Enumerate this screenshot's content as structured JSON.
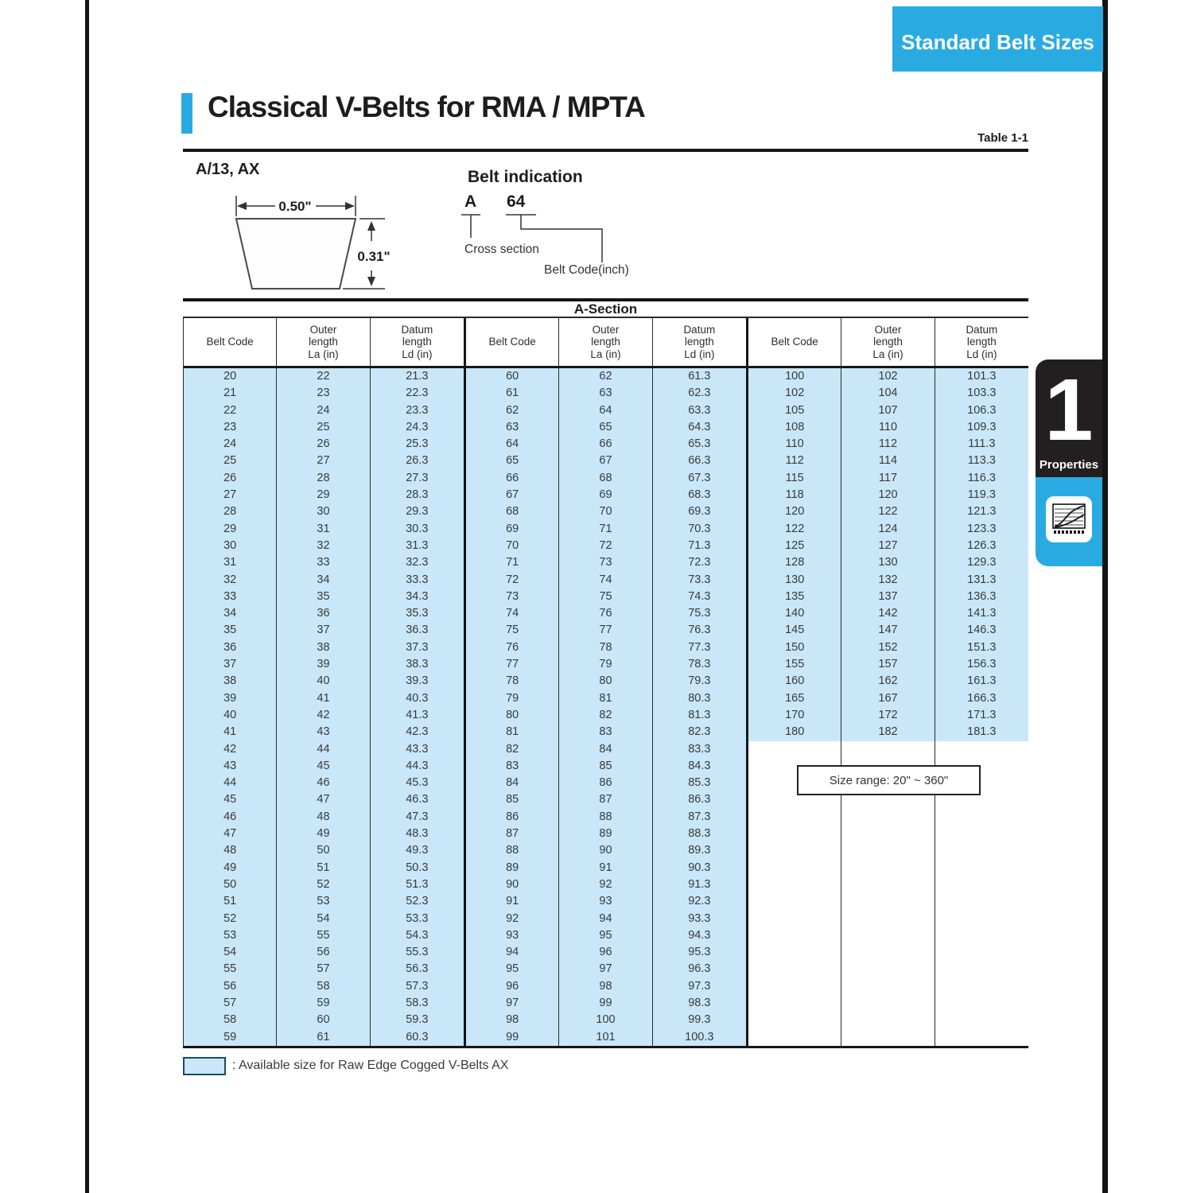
{
  "page": {
    "corner_tab": "Standard Belt Sizes",
    "title": "Classical V-Belts for RMA / MPTA",
    "table_ref": "Table 1-1",
    "section_label": "A/13, AX",
    "diagram": {
      "width_label": "0.50\"",
      "height_label": "0.31\""
    },
    "belt_indication": {
      "heading": "Belt indication",
      "cross_section_value": "A",
      "belt_code_value": "64",
      "cross_section_label": "Cross section",
      "belt_code_label": "Belt Code(inch)"
    },
    "size_range": "Size range: 20\" ~ 360\"",
    "legend_text": ": Available size for Raw Edge Cogged V-Belts AX",
    "side_tab": {
      "number": "1",
      "label": "Properties"
    },
    "colors": {
      "accent_cyan": "#29abe2",
      "highlight_blue": "#c9e7f8",
      "tab_black": "#231f20"
    }
  },
  "table": {
    "section_title": "A-Section",
    "header_columns": [
      {
        "lines": [
          "Belt Code"
        ]
      },
      {
        "lines": [
          "Outer",
          "length",
          "La (in)"
        ]
      },
      {
        "lines": [
          "Datum",
          "length",
          "Ld (in)"
        ]
      }
    ],
    "groups": [
      {
        "rows": [
          [
            "20",
            "22",
            "21.3"
          ],
          [
            "21",
            "23",
            "22.3"
          ],
          [
            "22",
            "24",
            "23.3"
          ],
          [
            "23",
            "25",
            "24.3"
          ],
          [
            "24",
            "26",
            "25.3"
          ],
          [
            "25",
            "27",
            "26.3"
          ],
          [
            "26",
            "28",
            "27.3"
          ],
          [
            "27",
            "29",
            "28.3"
          ],
          [
            "28",
            "30",
            "29.3"
          ],
          [
            "29",
            "31",
            "30.3"
          ],
          [
            "30",
            "32",
            "31.3"
          ],
          [
            "31",
            "33",
            "32.3"
          ],
          [
            "32",
            "34",
            "33.3"
          ],
          [
            "33",
            "35",
            "34.3"
          ],
          [
            "34",
            "36",
            "35.3"
          ],
          [
            "35",
            "37",
            "36.3"
          ],
          [
            "36",
            "38",
            "37.3"
          ],
          [
            "37",
            "39",
            "38.3"
          ],
          [
            "38",
            "40",
            "39.3"
          ],
          [
            "39",
            "41",
            "40.3"
          ],
          [
            "40",
            "42",
            "41.3"
          ],
          [
            "41",
            "43",
            "42.3"
          ],
          [
            "42",
            "44",
            "43.3"
          ],
          [
            "43",
            "45",
            "44.3"
          ],
          [
            "44",
            "46",
            "45.3"
          ],
          [
            "45",
            "47",
            "46.3"
          ],
          [
            "46",
            "48",
            "47.3"
          ],
          [
            "47",
            "49",
            "48.3"
          ],
          [
            "48",
            "50",
            "49.3"
          ],
          [
            "49",
            "51",
            "50.3"
          ],
          [
            "50",
            "52",
            "51.3"
          ],
          [
            "51",
            "53",
            "52.3"
          ],
          [
            "52",
            "54",
            "53.3"
          ],
          [
            "53",
            "55",
            "54.3"
          ],
          [
            "54",
            "56",
            "55.3"
          ],
          [
            "55",
            "57",
            "56.3"
          ],
          [
            "56",
            "58",
            "57.3"
          ],
          [
            "57",
            "59",
            "58.3"
          ],
          [
            "58",
            "60",
            "59.3"
          ],
          [
            "59",
            "61",
            "60.3"
          ]
        ]
      },
      {
        "rows": [
          [
            "60",
            "62",
            "61.3"
          ],
          [
            "61",
            "63",
            "62.3"
          ],
          [
            "62",
            "64",
            "63.3"
          ],
          [
            "63",
            "65",
            "64.3"
          ],
          [
            "64",
            "66",
            "65.3"
          ],
          [
            "65",
            "67",
            "66.3"
          ],
          [
            "66",
            "68",
            "67.3"
          ],
          [
            "67",
            "69",
            "68.3"
          ],
          [
            "68",
            "70",
            "69.3"
          ],
          [
            "69",
            "71",
            "70.3"
          ],
          [
            "70",
            "72",
            "71.3"
          ],
          [
            "71",
            "73",
            "72.3"
          ],
          [
            "72",
            "74",
            "73.3"
          ],
          [
            "73",
            "75",
            "74.3"
          ],
          [
            "74",
            "76",
            "75.3"
          ],
          [
            "75",
            "77",
            "76.3"
          ],
          [
            "76",
            "78",
            "77.3"
          ],
          [
            "77",
            "79",
            "78.3"
          ],
          [
            "78",
            "80",
            "79.3"
          ],
          [
            "79",
            "81",
            "80.3"
          ],
          [
            "80",
            "82",
            "81.3"
          ],
          [
            "81",
            "83",
            "82.3"
          ],
          [
            "82",
            "84",
            "83.3"
          ],
          [
            "83",
            "85",
            "84.3"
          ],
          [
            "84",
            "86",
            "85.3"
          ],
          [
            "85",
            "87",
            "86.3"
          ],
          [
            "86",
            "88",
            "87.3"
          ],
          [
            "87",
            "89",
            "88.3"
          ],
          [
            "88",
            "90",
            "89.3"
          ],
          [
            "89",
            "91",
            "90.3"
          ],
          [
            "90",
            "92",
            "91.3"
          ],
          [
            "91",
            "93",
            "92.3"
          ],
          [
            "92",
            "94",
            "93.3"
          ],
          [
            "93",
            "95",
            "94.3"
          ],
          [
            "94",
            "96",
            "95.3"
          ],
          [
            "95",
            "97",
            "96.3"
          ],
          [
            "96",
            "98",
            "97.3"
          ],
          [
            "97",
            "99",
            "98.3"
          ],
          [
            "98",
            "100",
            "99.3"
          ],
          [
            "99",
            "101",
            "100.3"
          ]
        ]
      },
      {
        "rows": [
          [
            "100",
            "102",
            "101.3"
          ],
          [
            "102",
            "104",
            "103.3"
          ],
          [
            "105",
            "107",
            "106.3"
          ],
          [
            "108",
            "110",
            "109.3"
          ],
          [
            "110",
            "112",
            "111.3"
          ],
          [
            "112",
            "114",
            "113.3"
          ],
          [
            "115",
            "117",
            "116.3"
          ],
          [
            "118",
            "120",
            "119.3"
          ],
          [
            "120",
            "122",
            "121.3"
          ],
          [
            "122",
            "124",
            "123.3"
          ],
          [
            "125",
            "127",
            "126.3"
          ],
          [
            "128",
            "130",
            "129.3"
          ],
          [
            "130",
            "132",
            "131.3"
          ],
          [
            "135",
            "137",
            "136.3"
          ],
          [
            "140",
            "142",
            "141.3"
          ],
          [
            "145",
            "147",
            "146.3"
          ],
          [
            "150",
            "152",
            "151.3"
          ],
          [
            "155",
            "157",
            "156.3"
          ],
          [
            "160",
            "162",
            "161.3"
          ],
          [
            "165",
            "167",
            "166.3"
          ],
          [
            "170",
            "172",
            "171.3"
          ],
          [
            "180",
            "182",
            "181.3"
          ]
        ]
      }
    ]
  }
}
